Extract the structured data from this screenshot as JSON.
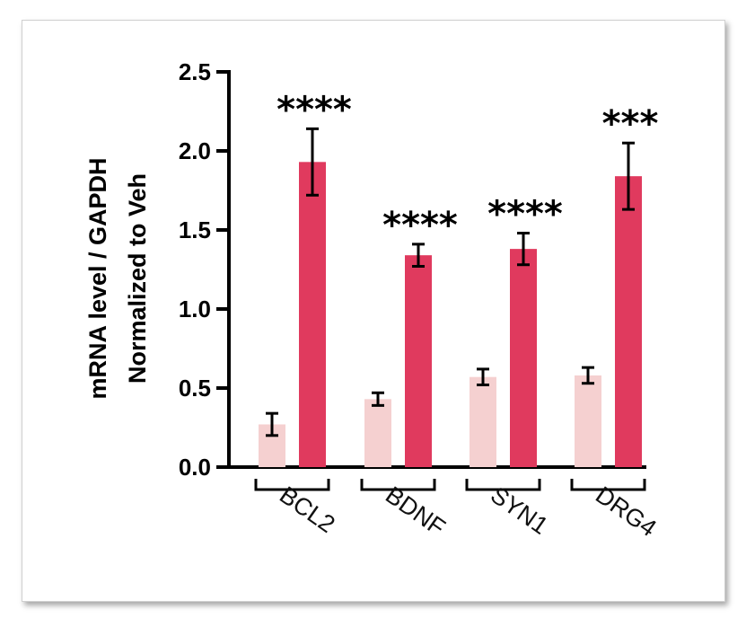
{
  "chart_data": {
    "type": "bar",
    "title": "",
    "ylabel_line1": "mRNA level / GAPDH",
    "ylabel_line2": "Normalized to Veh",
    "xlabel": "",
    "ylim": [
      0,
      2.5
    ],
    "yticks": [
      0.0,
      0.5,
      1.0,
      1.5,
      2.0,
      2.5
    ],
    "ytick_labels": [
      "0.0",
      "0.5",
      "1.0",
      "1.5",
      "2.0",
      "2.5"
    ],
    "categories": [
      "BCL2",
      "BDNF",
      "SYN1",
      "DRG4"
    ],
    "series": [
      {
        "color": "#f5d0d0",
        "values": [
          0.27,
          0.43,
          0.57,
          0.58
        ],
        "errors": [
          0.07,
          0.04,
          0.05,
          0.05
        ]
      },
      {
        "color": "#e03a5e",
        "values": [
          1.93,
          1.34,
          1.38,
          1.84
        ],
        "errors": [
          0.21,
          0.07,
          0.1,
          0.21
        ]
      }
    ],
    "significance": [
      "****",
      "****",
      "****",
      "***"
    ],
    "grid": false,
    "legend": "none"
  }
}
